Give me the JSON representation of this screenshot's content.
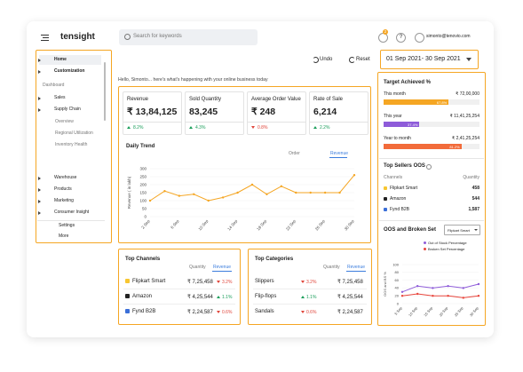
{
  "header": {
    "brand": "tensight",
    "search_placeholder": "Search for keywords",
    "notifications": "2",
    "help": "?",
    "user": "simonto@tenovio.com"
  },
  "sidebar": {
    "top": [
      "Home",
      "Customization"
    ],
    "section": "Dashboard",
    "dash": [
      "Sales",
      "Supply Chain"
    ],
    "sub": [
      "Overview",
      "Regional Utilization",
      "Inventory Health"
    ],
    "more": [
      "Warehouse",
      "Products",
      "Marketing",
      "Consumer Insight"
    ],
    "footer": [
      "Settings",
      "More"
    ]
  },
  "toolbar": {
    "undo": "Undo",
    "reset": "Reset",
    "date_range": "01 Sep 2021- 30 Sep 2021"
  },
  "greeting": "Hello, Simonto... here's what's happening with your online business today",
  "kpis": [
    {
      "label": "Revenue",
      "value": "₹ 13,84,125",
      "trend": "up",
      "delta": "8.2%"
    },
    {
      "label": "Sold Quantity",
      "value": "83,245",
      "trend": "up",
      "delta": "4.3%"
    },
    {
      "label": "Average Order Value",
      "value": "₹ 248",
      "trend": "down",
      "delta": "0.8%"
    },
    {
      "label": "Rate of Sale",
      "value": "6,214",
      "trend": "up",
      "delta": "2.2%"
    }
  ],
  "daily_trend": {
    "type": "line",
    "title": "Daily Trend",
    "tabs": [
      "Order",
      "Revenue"
    ],
    "y_label": "Revenue ( in lakh)",
    "categories": [
      "2 Sep",
      null,
      "6 Sep",
      null,
      "10 Sep",
      null,
      "14 Sep",
      null,
      "18 Sep",
      null,
      "22 Sep",
      null,
      "26 Sep",
      null,
      "30 Sep"
    ],
    "series": [
      {
        "color": "#f5a623",
        "values": [
          100,
          160,
          130,
          140,
          100,
          120,
          150,
          200,
          140,
          190,
          150,
          150,
          150,
          150,
          260
        ]
      }
    ],
    "ylim": [
      0,
      300
    ],
    "yticks": [
      0,
      50,
      100,
      150,
      200,
      250,
      300
    ]
  },
  "top_channels": {
    "title": "Top Channels",
    "tabs": [
      "Quantity",
      "Revenue"
    ],
    "rows": [
      {
        "name": "Flipkart Smart",
        "value": "₹ 7,25,458",
        "trend": "down",
        "delta": "3.2%"
      },
      {
        "name": "Amazon",
        "value": "₹ 4,25,544",
        "trend": "up",
        "delta": "1.1%"
      },
      {
        "name": "Fynd B2B",
        "value": "₹ 2,24,587",
        "trend": "down",
        "delta": "0.6%"
      }
    ]
  },
  "top_categories": {
    "title": "Top Categories",
    "tabs": [
      "Quantity",
      "Revenue"
    ],
    "rows": [
      {
        "name": "Slippers",
        "value": "₹ 7,25,458",
        "trend": "down",
        "delta": "3.2%"
      },
      {
        "name": "Flip-flops",
        "value": "₹ 4,25,544",
        "trend": "up",
        "delta": "1.1%"
      },
      {
        "name": "Sandals",
        "value": "₹ 2,24,587",
        "trend": "down",
        "delta": "0.6%"
      }
    ]
  },
  "target": {
    "title": "Target Achieved %",
    "rows": [
      {
        "label": "This month",
        "amount": "₹ 72,00,000",
        "pct": 67.8,
        "pct_label": "67.8%",
        "color": "#f5a623"
      },
      {
        "label": "This year",
        "amount": "₹ 11,41,25,254",
        "pct": 37.4,
        "pct_label": "37.4%",
        "color": "#8e5cd9"
      },
      {
        "label": "Year to month",
        "amount": "₹ 2,41,25,254",
        "pct": 81.2,
        "pct_label": "81.2%",
        "color": "#f26b3a"
      }
    ]
  },
  "top_sellers": {
    "title": "Top Sellers OOS",
    "col_a": "Channels",
    "col_b": "Quantity",
    "rows": [
      {
        "name": "Flipkart Smart",
        "qty": "458"
      },
      {
        "name": "Amazon",
        "qty": "544"
      },
      {
        "name": "Fynd B2B",
        "qty": "1,587"
      }
    ]
  },
  "oos_chart": {
    "type": "line",
    "title": "OOS and Broken Set",
    "dropdown": "Flipkart Smart",
    "y_label": "OOS and BS %",
    "categories": [
      "5 Sep",
      "10 Sep",
      "15 Sep",
      "20 Sep",
      "25 Sep",
      "30 Sep"
    ],
    "series": [
      {
        "name": "Out of Stock Percentage",
        "color": "#8e5cd9",
        "values": [
          30,
          45,
          40,
          45,
          40,
          50
        ]
      },
      {
        "name": "Broken Set Percentage",
        "color": "#e8453c",
        "values": [
          20,
          25,
          20,
          20,
          15,
          20
        ]
      }
    ],
    "ylim": [
      0,
      100
    ],
    "yticks": [
      0,
      20,
      40,
      60,
      80,
      100
    ]
  }
}
